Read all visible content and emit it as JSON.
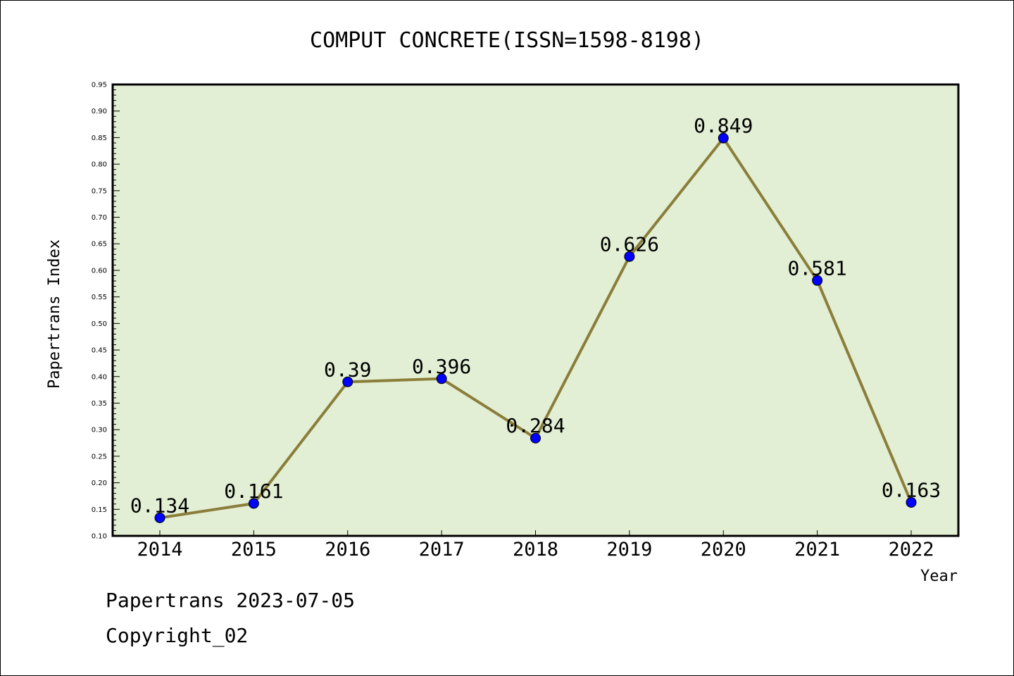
{
  "chart_data": {
    "type": "line",
    "title": "COMPUT CONCRETE(ISSN=1598-8198)",
    "xlabel": "Year",
    "ylabel": "Papertrans Index",
    "categories": [
      "2014",
      "2015",
      "2016",
      "2017",
      "2018",
      "2019",
      "2020",
      "2021",
      "2022"
    ],
    "series": [
      {
        "values": [
          0.134,
          0.161,
          0.39,
          0.396,
          0.284,
          0.626,
          0.849,
          0.581,
          0.163
        ]
      }
    ],
    "data_labels": [
      "0.134",
      "0.161",
      "0.39",
      "0.396",
      "0.284",
      "0.626",
      "0.849",
      "0.581",
      "0.163"
    ],
    "ylim": [
      0.1,
      0.95
    ],
    "yticks": [
      "0.10",
      "0.15",
      "0.20",
      "0.25",
      "0.30",
      "0.35",
      "0.40",
      "0.45",
      "0.50",
      "0.55",
      "0.60",
      "0.65",
      "0.70",
      "0.75",
      "0.80",
      "0.85",
      "0.90",
      "0.95"
    ],
    "grid": false,
    "colors": {
      "plot_bg": "#e2efd4",
      "line": "#8b7d3a",
      "marker": "#0000ff"
    }
  },
  "footer": {
    "line1": "Papertrans 2023-07-05",
    "line2": "Copyright_02"
  }
}
